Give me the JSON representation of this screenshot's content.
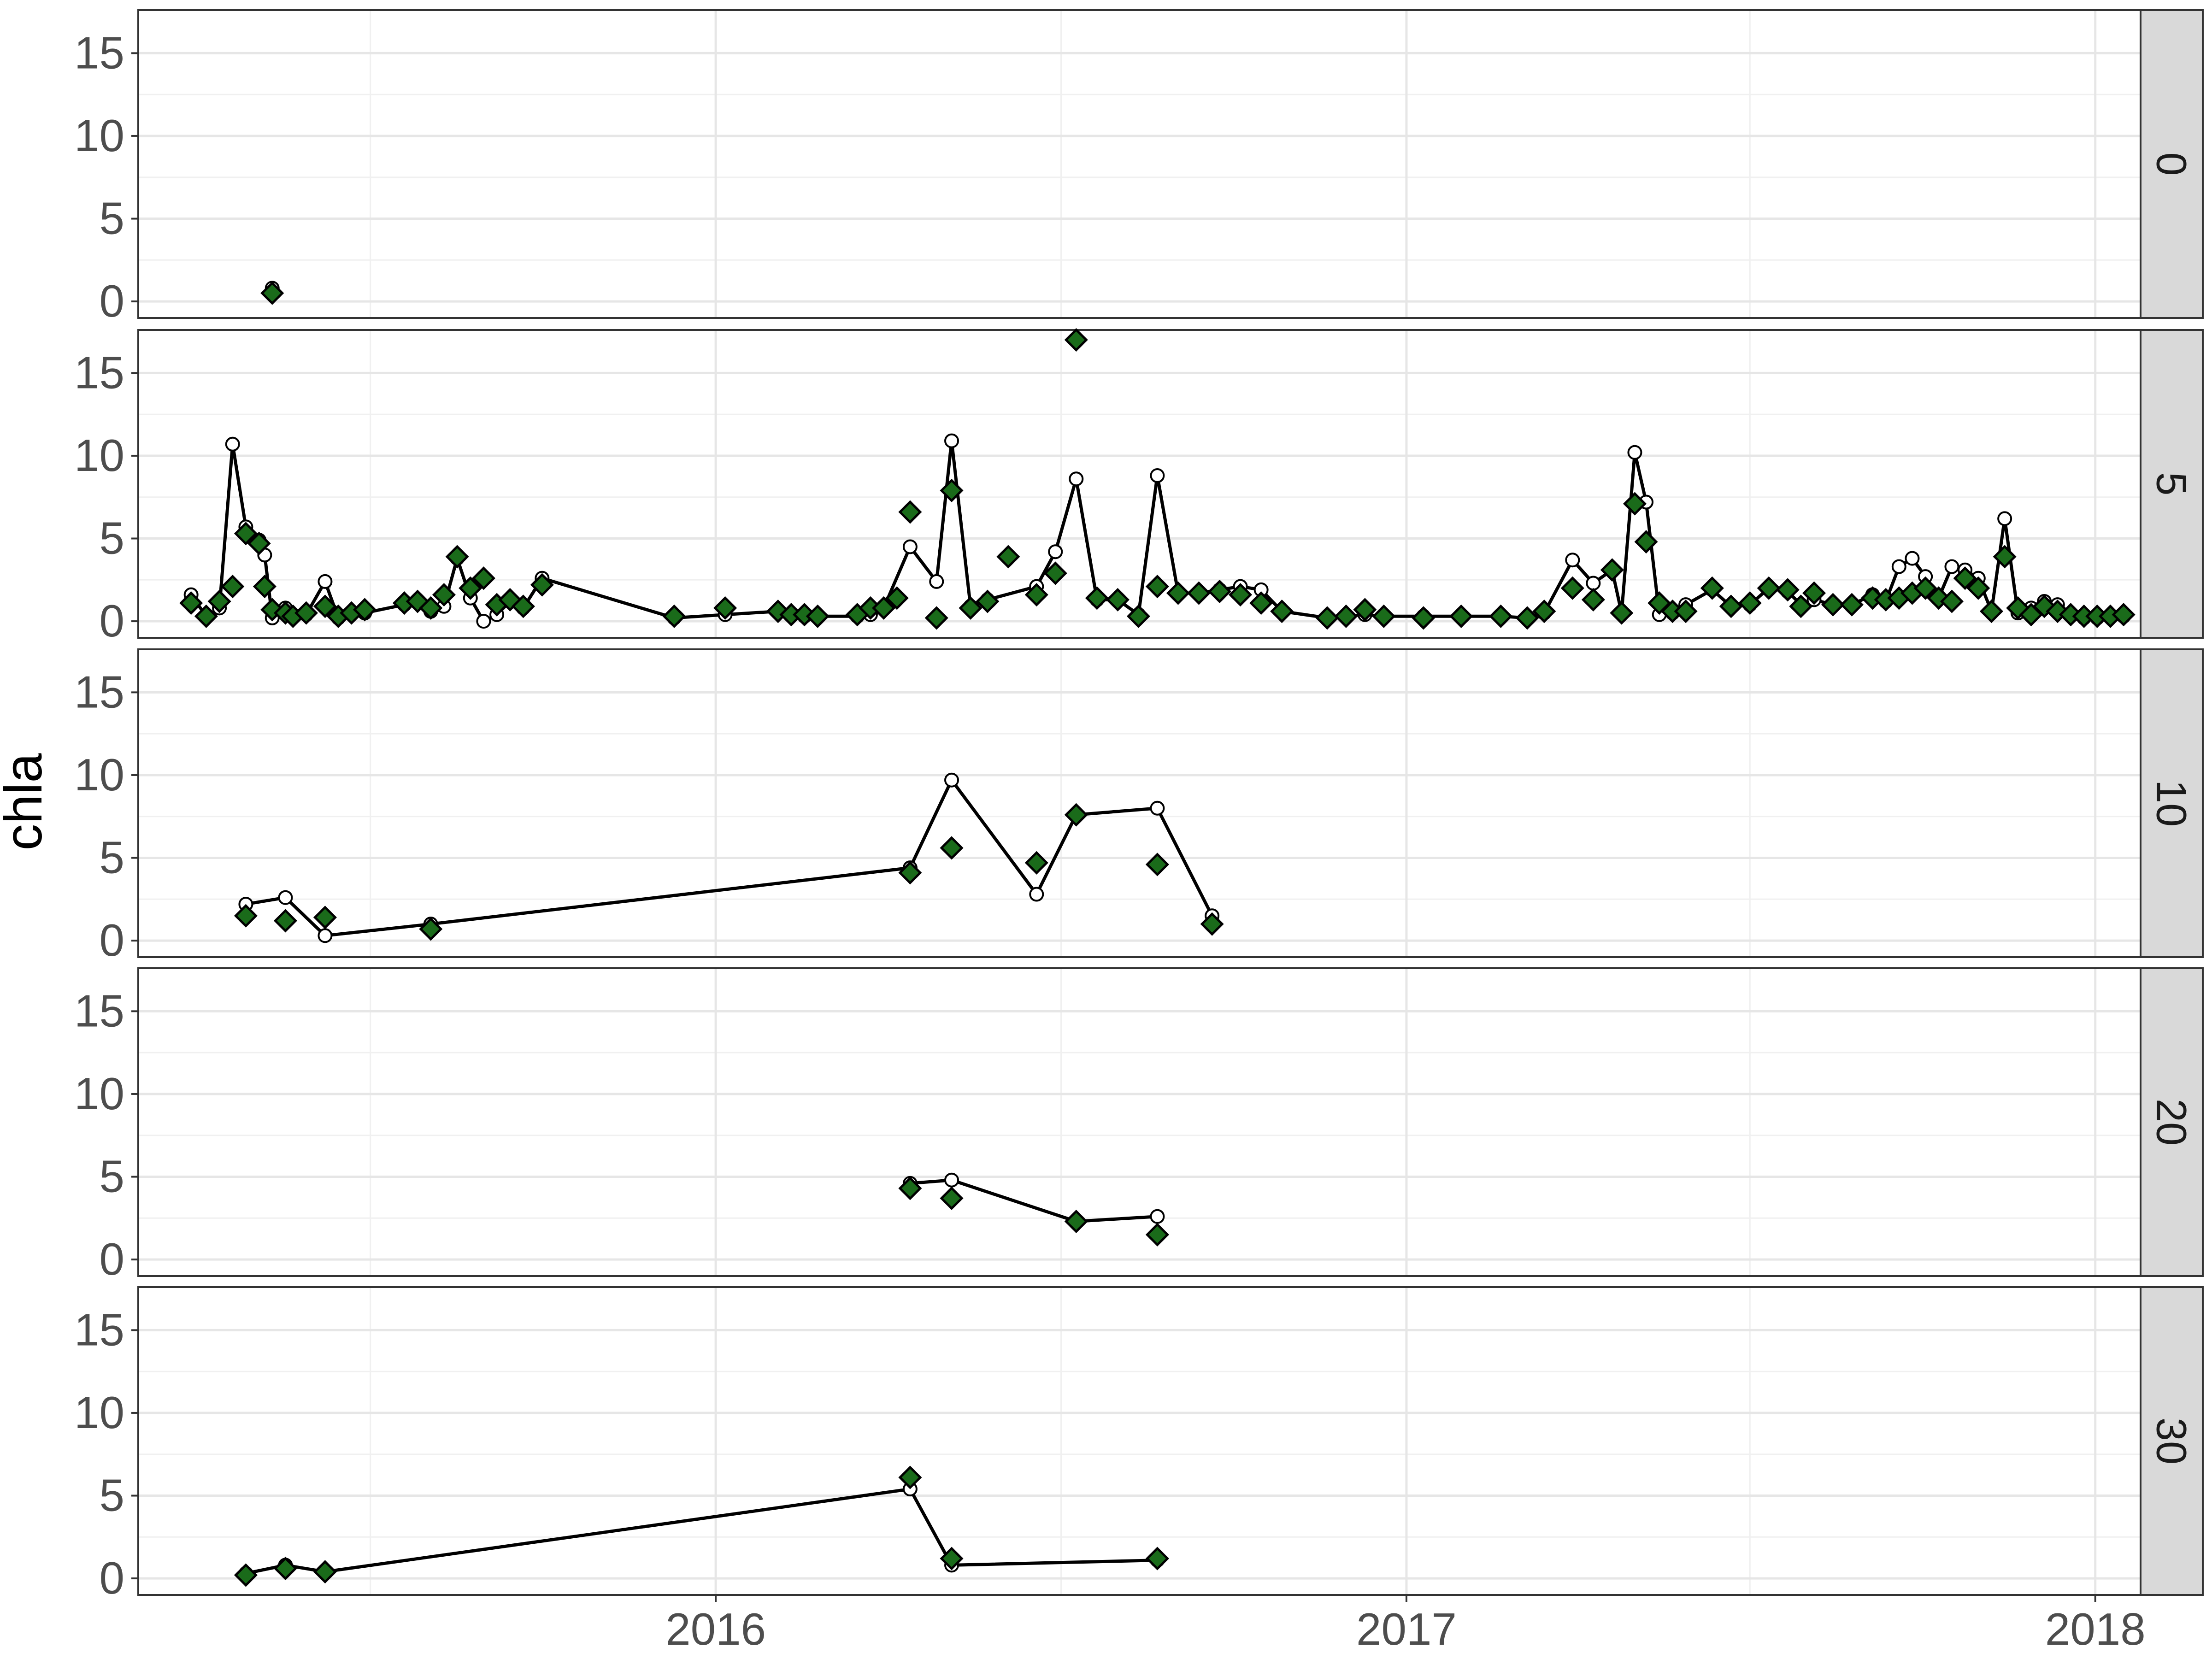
{
  "chart_data": {
    "type": "line",
    "ylabel": "chla",
    "xlabel": "",
    "x_ticks": [
      "2016",
      "2017",
      "2018"
    ],
    "y_ticks": [
      0,
      5,
      10,
      15
    ],
    "xlim": [
      "2015-03-01",
      "2018-01-25"
    ],
    "ylim": [
      -1,
      17.6
    ],
    "grid": true,
    "facet_strip_position": "right",
    "series_styles": {
      "line_points": {
        "marker": "open-circle",
        "color": "#000000",
        "connected": true
      },
      "diamond_points": {
        "marker": "diamond",
        "fill": "#1a6b1a",
        "stroke": "#000000"
      }
    },
    "panels": [
      {
        "label": "0",
        "line_points": [
          [
            "2015-05-11",
            0.8
          ]
        ],
        "diamond_points": [
          [
            "2015-05-11",
            0.5
          ]
        ]
      },
      {
        "label": "5",
        "line_points": [
          [
            "2015-03-29",
            1.6
          ],
          [
            "2015-04-06",
            0.3
          ],
          [
            "2015-04-13",
            0.8
          ],
          [
            "2015-04-20",
            10.7
          ],
          [
            "2015-04-27",
            5.7
          ],
          [
            "2015-05-04",
            4.9
          ],
          [
            "2015-05-07",
            4.0
          ],
          [
            "2015-05-11",
            0.2
          ],
          [
            "2015-05-18",
            0.8
          ],
          [
            "2015-05-22",
            0.3
          ],
          [
            "2015-05-29",
            0.4
          ],
          [
            "2015-06-08",
            2.4
          ],
          [
            "2015-06-15",
            0.2
          ],
          [
            "2015-06-22",
            0.5
          ],
          [
            "2015-06-29",
            0.5
          ],
          [
            "2015-07-20",
            1.0
          ],
          [
            "2015-07-27",
            1.2
          ],
          [
            "2015-08-03",
            0.6
          ],
          [
            "2015-08-10",
            0.9
          ],
          [
            "2015-08-17",
            3.8
          ],
          [
            "2015-08-24",
            1.4
          ],
          [
            "2015-08-31",
            0.0
          ],
          [
            "2015-09-07",
            0.4
          ],
          [
            "2015-09-14",
            1.2
          ],
          [
            "2015-09-21",
            0.8
          ],
          [
            "2015-10-01",
            2.6
          ],
          [
            "2015-12-10",
            0.2
          ],
          [
            "2016-01-06",
            0.4
          ],
          [
            "2016-02-03",
            0.6
          ],
          [
            "2016-02-10",
            0.4
          ],
          [
            "2016-02-17",
            0.3
          ],
          [
            "2016-02-24",
            0.3
          ],
          [
            "2016-03-16",
            0.3
          ],
          [
            "2016-03-23",
            0.4
          ],
          [
            "2016-03-30",
            0.8
          ],
          [
            "2016-04-13",
            4.5
          ],
          [
            "2016-04-27",
            2.4
          ],
          [
            "2016-05-05",
            10.9
          ],
          [
            "2016-05-15",
            0.9
          ],
          [
            "2016-05-24",
            1.3
          ],
          [
            "2016-06-19",
            2.1
          ],
          [
            "2016-06-29",
            4.2
          ],
          [
            "2016-07-10",
            8.6
          ],
          [
            "2016-07-21",
            1.3
          ],
          [
            "2016-08-01",
            1.3
          ],
          [
            "2016-08-12",
            0.4
          ],
          [
            "2016-08-22",
            8.8
          ],
          [
            "2016-09-02",
            1.7
          ],
          [
            "2016-09-13",
            1.7
          ],
          [
            "2016-09-24",
            1.9
          ],
          [
            "2016-10-05",
            2.1
          ],
          [
            "2016-10-16",
            1.9
          ],
          [
            "2016-10-27",
            0.6
          ],
          [
            "2016-11-20",
            0.2
          ],
          [
            "2016-11-30",
            0.3
          ],
          [
            "2016-12-10",
            0.4
          ],
          [
            "2016-12-20",
            0.3
          ],
          [
            "2017-01-10",
            0.3
          ],
          [
            "2017-01-30",
            0.3
          ],
          [
            "2017-02-20",
            0.3
          ],
          [
            "2017-03-06",
            0.2
          ],
          [
            "2017-03-15",
            0.5
          ],
          [
            "2017-03-30",
            3.7
          ],
          [
            "2017-04-10",
            2.3
          ],
          [
            "2017-04-20",
            3.1
          ],
          [
            "2017-04-25",
            0.5
          ],
          [
            "2017-05-02",
            10.2
          ],
          [
            "2017-05-08",
            7.2
          ],
          [
            "2017-05-15",
            0.4
          ],
          [
            "2017-05-22",
            0.5
          ],
          [
            "2017-05-29",
            1.0
          ],
          [
            "2017-06-12",
            1.9
          ],
          [
            "2017-06-22",
            0.9
          ],
          [
            "2017-07-02",
            1.0
          ],
          [
            "2017-07-12",
            2.0
          ],
          [
            "2017-07-22",
            1.8
          ],
          [
            "2017-07-29",
            1.0
          ],
          [
            "2017-08-05",
            1.3
          ],
          [
            "2017-08-15",
            1.0
          ],
          [
            "2017-08-25",
            1.0
          ],
          [
            "2017-09-05",
            1.6
          ],
          [
            "2017-09-12",
            1.2
          ],
          [
            "2017-09-19",
            3.3
          ],
          [
            "2017-09-26",
            3.8
          ],
          [
            "2017-10-03",
            2.7
          ],
          [
            "2017-10-10",
            1.4
          ],
          [
            "2017-10-17",
            3.3
          ],
          [
            "2017-10-24",
            3.1
          ],
          [
            "2017-10-31",
            2.6
          ],
          [
            "2017-11-07",
            0.6
          ],
          [
            "2017-11-14",
            6.2
          ],
          [
            "2017-11-21",
            0.5
          ],
          [
            "2017-11-28",
            0.8
          ],
          [
            "2017-12-05",
            1.2
          ],
          [
            "2017-12-12",
            1.0
          ],
          [
            "2017-12-19",
            0.4
          ],
          [
            "2017-12-26",
            0.2
          ],
          [
            "2018-01-02",
            0.2
          ],
          [
            "2018-01-09",
            0.3
          ],
          [
            "2018-01-16",
            0.3
          ]
        ],
        "diamond_points": [
          [
            "2015-03-29",
            1.1
          ],
          [
            "2015-04-06",
            0.3
          ],
          [
            "2015-04-13",
            1.2
          ],
          [
            "2015-04-20",
            2.1
          ],
          [
            "2015-04-27",
            5.3
          ],
          [
            "2015-05-04",
            4.7
          ],
          [
            "2015-05-07",
            2.1
          ],
          [
            "2015-05-11",
            0.7
          ],
          [
            "2015-05-18",
            0.5
          ],
          [
            "2015-05-22",
            0.3
          ],
          [
            "2015-05-29",
            0.5
          ],
          [
            "2015-06-08",
            0.9
          ],
          [
            "2015-06-15",
            0.3
          ],
          [
            "2015-06-22",
            0.5
          ],
          [
            "2015-06-29",
            0.7
          ],
          [
            "2015-07-20",
            1.1
          ],
          [
            "2015-07-27",
            1.2
          ],
          [
            "2015-08-03",
            0.8
          ],
          [
            "2015-08-10",
            1.6
          ],
          [
            "2015-08-17",
            3.9
          ],
          [
            "2015-08-24",
            2.0
          ],
          [
            "2015-08-31",
            2.6
          ],
          [
            "2015-09-07",
            1.0
          ],
          [
            "2015-09-14",
            1.3
          ],
          [
            "2015-09-21",
            0.9
          ],
          [
            "2015-10-01",
            2.2
          ],
          [
            "2015-12-10",
            0.3
          ],
          [
            "2016-01-06",
            0.8
          ],
          [
            "2016-02-03",
            0.6
          ],
          [
            "2016-02-10",
            0.4
          ],
          [
            "2016-02-17",
            0.4
          ],
          [
            "2016-02-24",
            0.3
          ],
          [
            "2016-03-16",
            0.4
          ],
          [
            "2016-03-23",
            0.8
          ],
          [
            "2016-03-30",
            0.8
          ],
          [
            "2016-04-06",
            1.4
          ],
          [
            "2016-04-13",
            6.6
          ],
          [
            "2016-04-27",
            0.2
          ],
          [
            "2016-05-05",
            7.9
          ],
          [
            "2016-05-15",
            0.8
          ],
          [
            "2016-05-24",
            1.2
          ],
          [
            "2016-06-04",
            3.9
          ],
          [
            "2016-06-19",
            1.6
          ],
          [
            "2016-06-29",
            2.9
          ],
          [
            "2016-07-10",
            17.0
          ],
          [
            "2016-07-21",
            1.4
          ],
          [
            "2016-08-01",
            1.3
          ],
          [
            "2016-08-12",
            0.3
          ],
          [
            "2016-08-22",
            2.1
          ],
          [
            "2016-09-02",
            1.7
          ],
          [
            "2016-09-13",
            1.7
          ],
          [
            "2016-09-24",
            1.8
          ],
          [
            "2016-10-05",
            1.6
          ],
          [
            "2016-10-16",
            1.1
          ],
          [
            "2016-10-27",
            0.6
          ],
          [
            "2016-11-20",
            0.2
          ],
          [
            "2016-11-30",
            0.3
          ],
          [
            "2016-12-10",
            0.7
          ],
          [
            "2016-12-20",
            0.3
          ],
          [
            "2017-01-10",
            0.2
          ],
          [
            "2017-01-30",
            0.3
          ],
          [
            "2017-02-20",
            0.3
          ],
          [
            "2017-03-06",
            0.2
          ],
          [
            "2017-03-15",
            0.6
          ],
          [
            "2017-03-30",
            2.0
          ],
          [
            "2017-04-10",
            1.3
          ],
          [
            "2017-04-20",
            3.1
          ],
          [
            "2017-04-25",
            0.5
          ],
          [
            "2017-05-02",
            7.1
          ],
          [
            "2017-05-08",
            4.8
          ],
          [
            "2017-05-15",
            1.1
          ],
          [
            "2017-05-22",
            0.6
          ],
          [
            "2017-05-29",
            0.6
          ],
          [
            "2017-06-12",
            2.0
          ],
          [
            "2017-06-22",
            0.9
          ],
          [
            "2017-07-02",
            1.1
          ],
          [
            "2017-07-12",
            2.0
          ],
          [
            "2017-07-22",
            1.9
          ],
          [
            "2017-07-29",
            0.9
          ],
          [
            "2017-08-05",
            1.7
          ],
          [
            "2017-08-15",
            1.0
          ],
          [
            "2017-08-25",
            1.0
          ],
          [
            "2017-09-05",
            1.4
          ],
          [
            "2017-09-12",
            1.3
          ],
          [
            "2017-09-19",
            1.4
          ],
          [
            "2017-09-26",
            1.7
          ],
          [
            "2017-10-03",
            2.0
          ],
          [
            "2017-10-10",
            1.4
          ],
          [
            "2017-10-17",
            1.2
          ],
          [
            "2017-10-24",
            2.6
          ],
          [
            "2017-10-31",
            2.0
          ],
          [
            "2017-11-07",
            0.6
          ],
          [
            "2017-11-14",
            3.9
          ],
          [
            "2017-11-21",
            0.8
          ],
          [
            "2017-11-28",
            0.4
          ],
          [
            "2017-12-05",
            0.9
          ],
          [
            "2017-12-12",
            0.6
          ],
          [
            "2017-12-19",
            0.4
          ],
          [
            "2017-12-26",
            0.3
          ],
          [
            "2018-01-02",
            0.3
          ],
          [
            "2018-01-09",
            0.3
          ],
          [
            "2018-01-16",
            0.4
          ]
        ]
      },
      {
        "label": "10",
        "line_points": [
          [
            "2015-04-27",
            2.2
          ],
          [
            "2015-05-18",
            2.6
          ],
          [
            "2015-06-08",
            0.3
          ],
          [
            "2015-08-03",
            1.0
          ],
          [
            "2016-04-13",
            4.4
          ],
          [
            "2016-05-05",
            9.7
          ],
          [
            "2016-06-19",
            2.8
          ],
          [
            "2016-07-10",
            7.6
          ],
          [
            "2016-08-22",
            8.0
          ],
          [
            "2016-09-20",
            1.5
          ]
        ],
        "diamond_points": [
          [
            "2015-04-27",
            1.5
          ],
          [
            "2015-05-18",
            1.2
          ],
          [
            "2015-06-08",
            1.4
          ],
          [
            "2015-08-03",
            0.7
          ],
          [
            "2016-04-13",
            4.1
          ],
          [
            "2016-05-05",
            5.6
          ],
          [
            "2016-06-19",
            4.7
          ],
          [
            "2016-07-10",
            7.6
          ],
          [
            "2016-08-22",
            4.6
          ],
          [
            "2016-09-20",
            1.0
          ]
        ]
      },
      {
        "label": "20",
        "line_points": [
          [
            "2016-04-13",
            4.6
          ],
          [
            "2016-05-05",
            4.8
          ],
          [
            "2016-07-10",
            2.3
          ],
          [
            "2016-08-22",
            2.6
          ]
        ],
        "diamond_points": [
          [
            "2016-04-13",
            4.3
          ],
          [
            "2016-05-05",
            3.7
          ],
          [
            "2016-07-10",
            2.3
          ],
          [
            "2016-08-22",
            1.5
          ]
        ]
      },
      {
        "label": "30",
        "line_points": [
          [
            "2015-04-27",
            0.3
          ],
          [
            "2015-05-18",
            0.8
          ],
          [
            "2015-06-08",
            0.4
          ],
          [
            "2016-04-13",
            5.4
          ],
          [
            "2016-05-05",
            0.8
          ],
          [
            "2016-08-22",
            1.1
          ]
        ],
        "diamond_points": [
          [
            "2015-04-27",
            0.2
          ],
          [
            "2015-05-18",
            0.6
          ],
          [
            "2015-06-08",
            0.4
          ],
          [
            "2016-04-13",
            6.1
          ],
          [
            "2016-05-05",
            1.2
          ],
          [
            "2016-08-22",
            1.2
          ]
        ]
      }
    ]
  }
}
